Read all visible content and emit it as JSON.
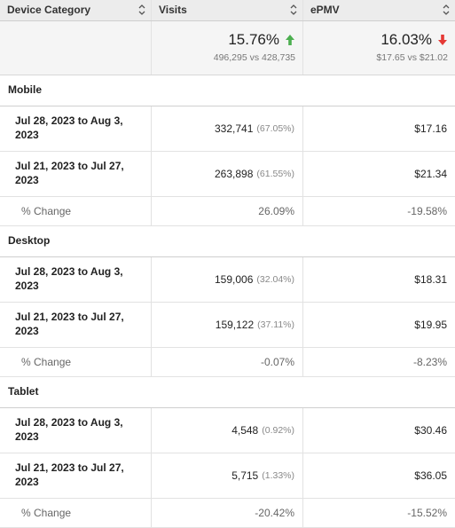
{
  "header": {
    "col1": "Device Category",
    "col2": "Visits",
    "col3": "ePMV"
  },
  "totals": {
    "visits_change": "15.76%",
    "visits_compare": "496,295 vs 428,735",
    "visits_direction": "up",
    "epmv_change": "16.03%",
    "epmv_compare": "$17.65 vs $21.02",
    "epmv_direction": "down"
  },
  "colors": {
    "up": "#4caf50",
    "down": "#e53935"
  },
  "groups": [
    {
      "name": "Mobile",
      "rows": [
        {
          "period": "Jul 28, 2023 to Aug 3, 2023",
          "visits": "332,741",
          "visits_pct": "(67.05%)",
          "epmv": "$17.16"
        },
        {
          "period": "Jul 21, 2023 to Jul 27, 2023",
          "visits": "263,898",
          "visits_pct": "(61.55%)",
          "epmv": "$21.34"
        }
      ],
      "change": {
        "label": "% Change",
        "visits": "26.09%",
        "epmv": "-19.58%"
      }
    },
    {
      "name": "Desktop",
      "rows": [
        {
          "period": "Jul 28, 2023 to Aug 3, 2023",
          "visits": "159,006",
          "visits_pct": "(32.04%)",
          "epmv": "$18.31"
        },
        {
          "period": "Jul 21, 2023 to Jul 27, 2023",
          "visits": "159,122",
          "visits_pct": "(37.11%)",
          "epmv": "$19.95"
        }
      ],
      "change": {
        "label": "% Change",
        "visits": "-0.07%",
        "epmv": "-8.23%"
      }
    },
    {
      "name": "Tablet",
      "rows": [
        {
          "period": "Jul 28, 2023 to Aug 3, 2023",
          "visits": "4,548",
          "visits_pct": "(0.92%)",
          "epmv": "$30.46"
        },
        {
          "period": "Jul 21, 2023 to Jul 27, 2023",
          "visits": "5,715",
          "visits_pct": "(1.33%)",
          "epmv": "$36.05"
        }
      ],
      "change": {
        "label": "% Change",
        "visits": "-20.42%",
        "epmv": "-15.52%"
      }
    }
  ]
}
